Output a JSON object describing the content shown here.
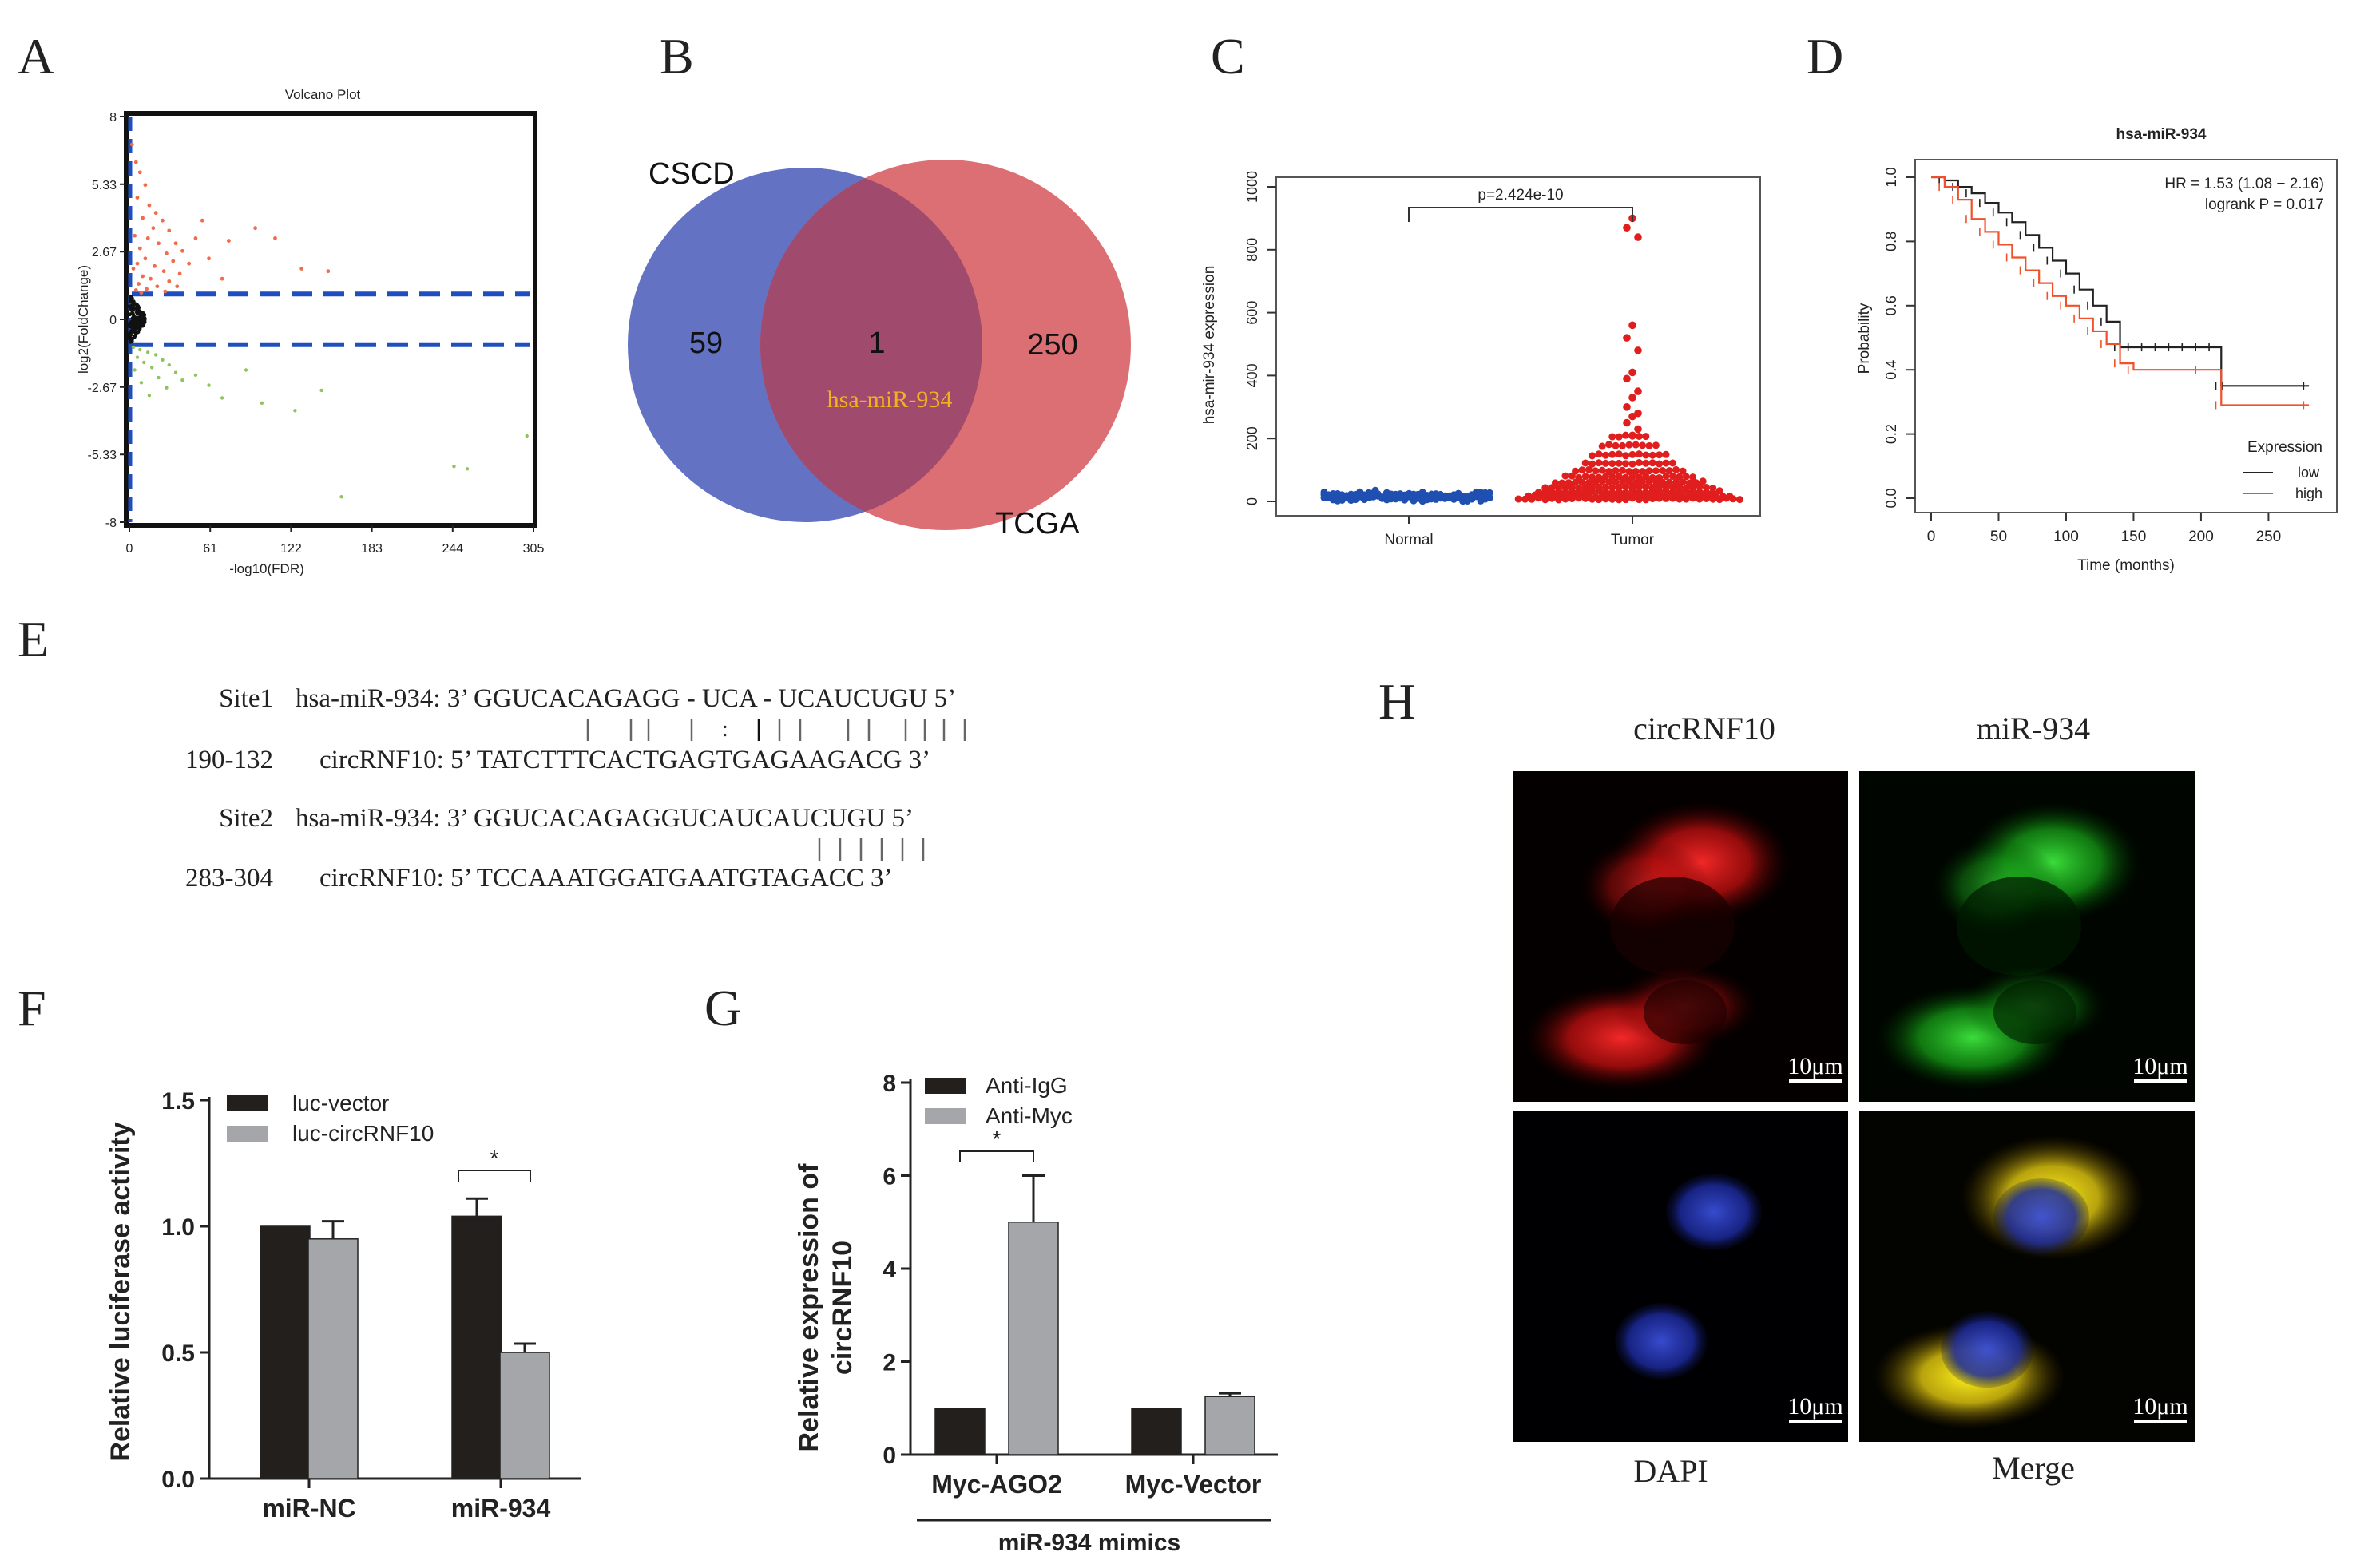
{
  "panels": {
    "A": {
      "letter": "A"
    },
    "B": {
      "letter": "B"
    },
    "C": {
      "letter": "C"
    },
    "D": {
      "letter": "D"
    },
    "E": {
      "letter": "E"
    },
    "F": {
      "letter": "F"
    },
    "G": {
      "letter": "G"
    },
    "H": {
      "letter": "H"
    }
  },
  "colors": {
    "up": "#f26b4a",
    "down": "#8fc45a",
    "threshold": "#1f4fbf",
    "venn_left": "#6472c4",
    "venn_right": "#dc6f73",
    "venn_overlap": "#a04a6e",
    "overlap_label": "#f2b21e",
    "normal": "#1f4fb0",
    "tumor": "#e01e1e",
    "km_low": "#222222",
    "km_high": "#f0502a",
    "bar_dark": "#231f1c",
    "bar_gray": "#a4a6aa"
  },
  "venn": {
    "left_label": "CSCD",
    "right_label": "TCGA",
    "left_only": "59",
    "overlap": "1",
    "right_only": "250",
    "overlap_name": "hsa-miR-934"
  },
  "sequences": {
    "site1_name": "Site1",
    "site1_mir": "hsa-miR-934: 3’ GGUCACAGAGG - UCA - UCAUCUGU 5’",
    "site1_range": "190-132",
    "site1_circ": "circRNF10: 5’ TATCTTTCACTGAGTGAGAAGACG 3’",
    "site2_name": "Site2",
    "site2_mir": "hsa-miR-934: 3’ GGUCACAGAGGUCAUCAUCUGU 5’",
    "site2_range": "283-304",
    "site2_circ": "circRNF10: 5’ TCCAAATGGATGAATGTAGACC 3’"
  },
  "microscopy": {
    "col1": "circRNF10",
    "col2": "miR-934",
    "row2_left": "DAPI",
    "row2_right": "Merge",
    "scale_bar": "10μm"
  },
  "chart_data": [
    {
      "panel": "A",
      "type": "scatter",
      "title": "Volcano Plot",
      "xlabel": "-log10(FDR)",
      "ylabel": "log2(FoldChange)",
      "xlim": [
        0,
        305
      ],
      "ylim": [
        -8,
        8
      ],
      "xticks": [
        "0",
        "61",
        "122",
        "183",
        "244",
        "305"
      ],
      "yticks": [
        "8",
        "5.33",
        "2.67",
        "0",
        "-2.67",
        "-5.33",
        "-8"
      ],
      "thresholds_y": [
        1,
        -1
      ],
      "up_points": [
        [
          2,
          6.9
        ],
        [
          5,
          6.2
        ],
        [
          8,
          5.8
        ],
        [
          12,
          5.3
        ],
        [
          6,
          4.8
        ],
        [
          15,
          4.5
        ],
        [
          20,
          4.2
        ],
        [
          10,
          4.0
        ],
        [
          25,
          3.9
        ],
        [
          18,
          3.6
        ],
        [
          30,
          3.5
        ],
        [
          4,
          3.3
        ],
        [
          14,
          3.2
        ],
        [
          22,
          3.0
        ],
        [
          35,
          3.0
        ],
        [
          8,
          2.8
        ],
        [
          28,
          2.6
        ],
        [
          40,
          2.7
        ],
        [
          12,
          2.4
        ],
        [
          33,
          2.3
        ],
        [
          6,
          2.2
        ],
        [
          19,
          2.1
        ],
        [
          45,
          2.2
        ],
        [
          3,
          2.0
        ],
        [
          26,
          1.9
        ],
        [
          38,
          1.8
        ],
        [
          10,
          1.7
        ],
        [
          16,
          1.6
        ],
        [
          30,
          1.5
        ],
        [
          7,
          1.4
        ],
        [
          21,
          1.3
        ],
        [
          36,
          1.3
        ],
        [
          13,
          1.2
        ],
        [
          5,
          1.15
        ],
        [
          27,
          1.1
        ],
        [
          9,
          1.05
        ],
        [
          50,
          3.2
        ],
        [
          55,
          3.9
        ],
        [
          60,
          2.4
        ],
        [
          75,
          3.1
        ],
        [
          95,
          3.6
        ],
        [
          110,
          3.2
        ],
        [
          130,
          2.0
        ],
        [
          150,
          1.9
        ],
        [
          70,
          1.6
        ]
      ],
      "down_points": [
        [
          3,
          -1.1
        ],
        [
          8,
          -1.2
        ],
        [
          14,
          -1.3
        ],
        [
          20,
          -1.4
        ],
        [
          6,
          -1.5
        ],
        [
          25,
          -1.6
        ],
        [
          11,
          -1.7
        ],
        [
          30,
          -1.8
        ],
        [
          17,
          -1.9
        ],
        [
          4,
          -2.0
        ],
        [
          35,
          -2.1
        ],
        [
          22,
          -2.3
        ],
        [
          9,
          -2.5
        ],
        [
          40,
          -2.4
        ],
        [
          28,
          -2.7
        ],
        [
          15,
          -3.0
        ],
        [
          50,
          -2.2
        ],
        [
          60,
          -2.6
        ],
        [
          70,
          -3.1
        ],
        [
          88,
          -2.0
        ],
        [
          100,
          -3.3
        ],
        [
          125,
          -3.6
        ],
        [
          145,
          -2.8
        ],
        [
          160,
          -7.0
        ],
        [
          245,
          -5.8
        ],
        [
          255,
          -5.9
        ],
        [
          300,
          -4.6
        ]
      ],
      "ns_count_note": "dense black points near x=0, |log2FC|<1"
    },
    {
      "panel": "C",
      "type": "scatter",
      "categories": [
        "Normal",
        "Tumor"
      ],
      "ylabel": "hsa-mir-934 expression",
      "ylim": [
        0,
        1000
      ],
      "yticks": [
        "0",
        "200",
        "400",
        "600",
        "800",
        "1000"
      ],
      "annotation": "p=2.424e-10",
      "tumor_max": 900,
      "tumor_high_values": [
        900,
        870,
        840,
        560,
        520,
        480,
        410,
        390,
        350,
        330,
        300,
        280,
        270,
        250,
        230,
        210
      ],
      "normal_max": 35
    },
    {
      "panel": "D",
      "type": "line",
      "title": "hsa-miR-934",
      "xlabel": "Time (months)",
      "ylabel": "Probability",
      "xlim": [
        0,
        290
      ],
      "ylim": [
        0,
        1
      ],
      "xticks": [
        "0",
        "50",
        "100",
        "150",
        "200",
        "250"
      ],
      "yticks": [
        "0.0",
        "0.2",
        "0.4",
        "0.6",
        "0.8",
        "1.0"
      ],
      "annotation_hr": "HR = 1.53 (1.08 − 2.16)",
      "annotation_p": "logrank P = 0.017",
      "legend_title": "Expression",
      "series": [
        {
          "name": "low",
          "x": [
            0,
            10,
            20,
            30,
            40,
            50,
            60,
            70,
            80,
            90,
            100,
            110,
            120,
            130,
            140,
            150,
            160,
            170,
            180,
            190,
            200,
            210,
            215,
            220,
            280
          ],
          "y": [
            1.0,
            0.99,
            0.97,
            0.95,
            0.92,
            0.89,
            0.86,
            0.82,
            0.78,
            0.74,
            0.7,
            0.65,
            0.6,
            0.55,
            0.47,
            0.47,
            0.47,
            0.47,
            0.47,
            0.47,
            0.47,
            0.47,
            0.35,
            0.35,
            0.35
          ]
        },
        {
          "name": "high",
          "x": [
            0,
            10,
            20,
            30,
            40,
            50,
            60,
            70,
            80,
            90,
            100,
            110,
            120,
            130,
            140,
            150,
            200,
            215,
            280
          ],
          "y": [
            1.0,
            0.97,
            0.93,
            0.87,
            0.83,
            0.79,
            0.75,
            0.71,
            0.67,
            0.63,
            0.6,
            0.56,
            0.52,
            0.48,
            0.42,
            0.4,
            0.4,
            0.29,
            0.29
          ]
        }
      ]
    },
    {
      "panel": "F",
      "type": "bar",
      "categories": [
        "miR-NC",
        "miR-934"
      ],
      "ylabel": "Relative luciferase activity",
      "ylim": [
        0,
        1.5
      ],
      "yticks": [
        "0.0",
        "0.5",
        "1.0",
        "1.5"
      ],
      "series": [
        {
          "name": "luc-vector",
          "values": [
            1.0,
            1.04
          ],
          "errors": [
            0,
            0.07
          ]
        },
        {
          "name": "luc-circRNF10",
          "values": [
            0.95,
            0.5
          ],
          "errors": [
            0.07,
            0.035
          ]
        }
      ],
      "significance": "*"
    },
    {
      "panel": "G",
      "type": "bar",
      "categories": [
        "Myc-AGO2",
        "Myc-Vector"
      ],
      "group_label": "miR-934 mimics",
      "ylabel_line1": "Relative expression of",
      "ylabel_line2": "circRNF10",
      "ylim": [
        0,
        8
      ],
      "yticks": [
        "0",
        "2",
        "4",
        "6",
        "8"
      ],
      "series": [
        {
          "name": "Anti-IgG",
          "values": [
            1.0,
            1.0
          ],
          "errors": [
            0,
            0
          ]
        },
        {
          "name": "Anti-Myc",
          "values": [
            5.0,
            1.25
          ],
          "errors": [
            1.0,
            0.07
          ]
        }
      ],
      "significance": "*"
    }
  ]
}
